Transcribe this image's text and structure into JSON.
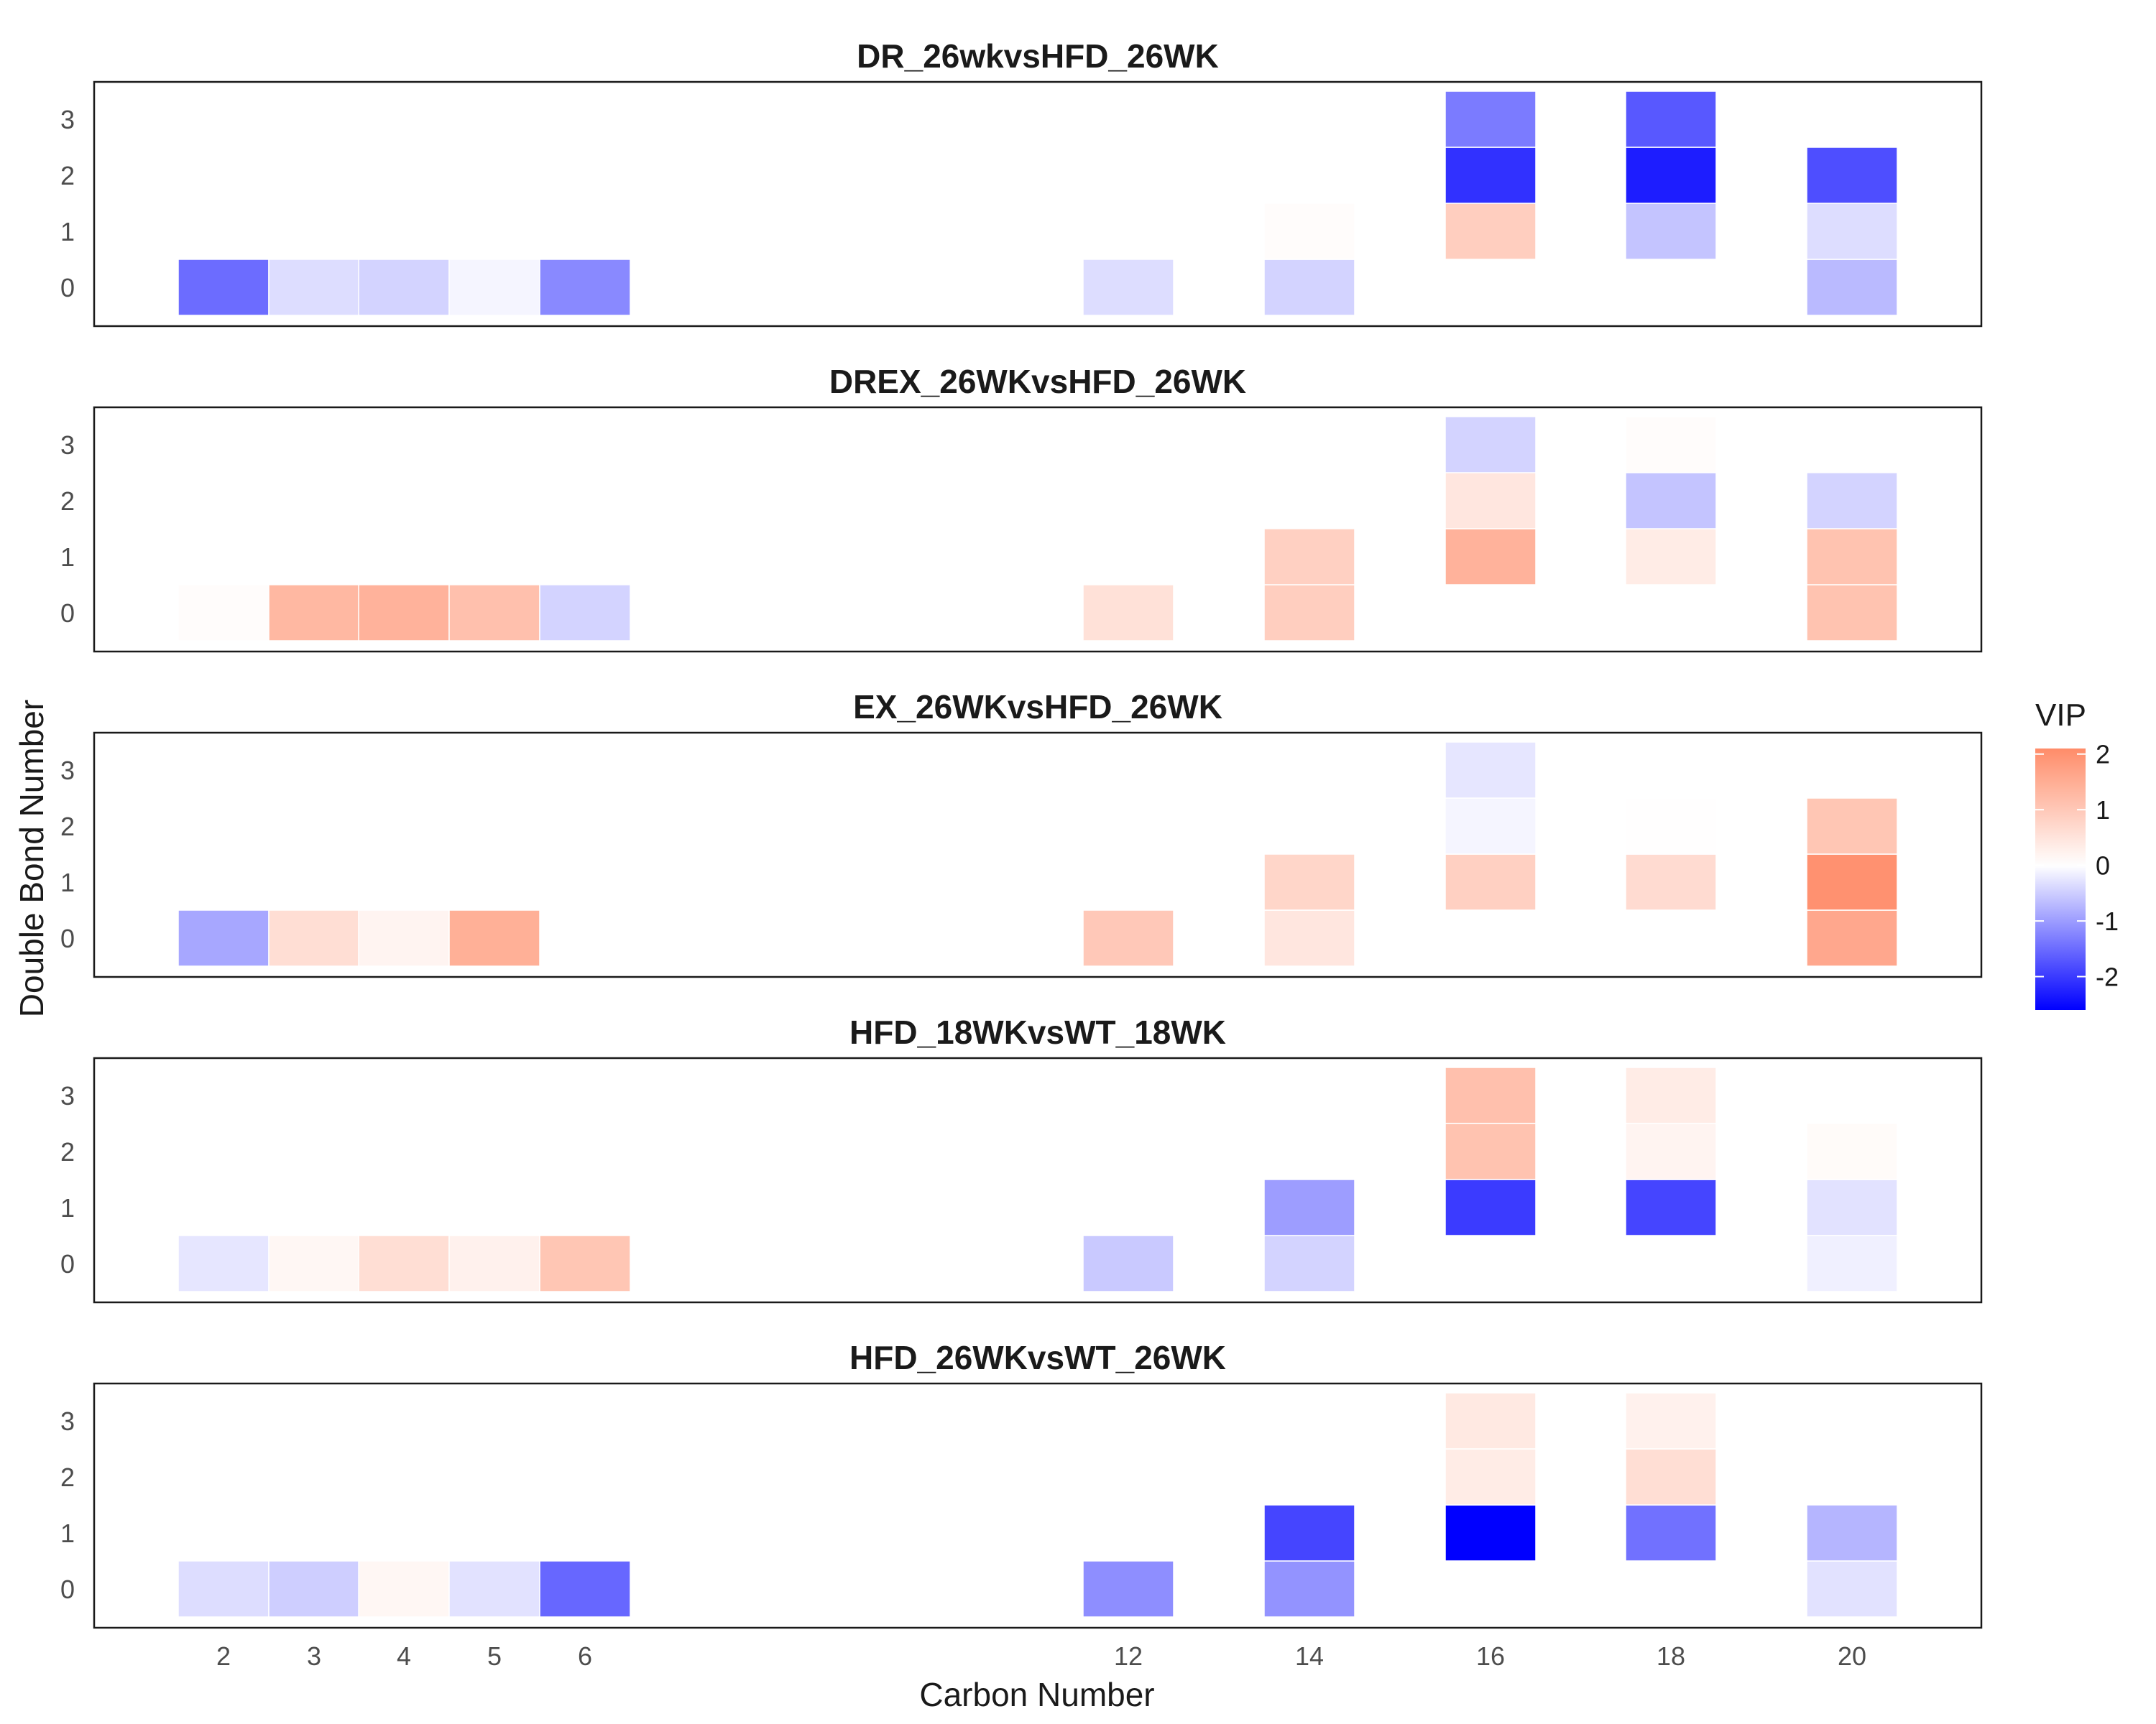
{
  "chart_data": {
    "type": "heatmap",
    "xlabel": "Carbon Number",
    "ylabel": "Double Bond Number",
    "x_ticks": [
      2,
      3,
      4,
      5,
      6,
      12,
      14,
      16,
      18,
      20
    ],
    "y_ticks": [
      0,
      1,
      2,
      3
    ],
    "legend": {
      "title": "VIP",
      "ticks": [
        2,
        1,
        0,
        -1,
        -2
      ],
      "range": [
        -2.6,
        2.1
      ],
      "colors": {
        "low": "#0000ff",
        "mid": "#ffffff",
        "high": "#ff8c69"
      },
      "placement": "right"
    },
    "panels": [
      {
        "title": "DR_26wkvsHFD_26WK",
        "cells": [
          {
            "carbon": 2,
            "db": 0,
            "vip": -1.5
          },
          {
            "carbon": 3,
            "db": 0,
            "vip": -0.35
          },
          {
            "carbon": 4,
            "db": 0,
            "vip": -0.45
          },
          {
            "carbon": 5,
            "db": 0,
            "vip": -0.1
          },
          {
            "carbon": 6,
            "db": 0,
            "vip": -1.2
          },
          {
            "carbon": 12,
            "db": 0,
            "vip": -0.35
          },
          {
            "carbon": 14,
            "db": 0,
            "vip": -0.45
          },
          {
            "carbon": 14,
            "db": 1,
            "vip": 0.05
          },
          {
            "carbon": 16,
            "db": 1,
            "vip": 0.9
          },
          {
            "carbon": 16,
            "db": 2,
            "vip": -2.1
          },
          {
            "carbon": 16,
            "db": 3,
            "vip": -1.35
          },
          {
            "carbon": 18,
            "db": 1,
            "vip": -0.6
          },
          {
            "carbon": 18,
            "db": 2,
            "vip": -2.3
          },
          {
            "carbon": 18,
            "db": 3,
            "vip": -1.7
          },
          {
            "carbon": 20,
            "db": 0,
            "vip": -0.7
          },
          {
            "carbon": 20,
            "db": 1,
            "vip": -0.35
          },
          {
            "carbon": 20,
            "db": 2,
            "vip": -1.8
          }
        ]
      },
      {
        "title": "DREX_26WKvsHFD_26WK",
        "cells": [
          {
            "carbon": 2,
            "db": 0,
            "vip": 0.05
          },
          {
            "carbon": 3,
            "db": 0,
            "vip": 1.3
          },
          {
            "carbon": 4,
            "db": 0,
            "vip": 1.4
          },
          {
            "carbon": 5,
            "db": 0,
            "vip": 1.15
          },
          {
            "carbon": 6,
            "db": 0,
            "vip": -0.45
          },
          {
            "carbon": 12,
            "db": 0,
            "vip": 0.55
          },
          {
            "carbon": 14,
            "db": 0,
            "vip": 0.9
          },
          {
            "carbon": 14,
            "db": 1,
            "vip": 0.85
          },
          {
            "carbon": 16,
            "db": 1,
            "vip": 1.4
          },
          {
            "carbon": 16,
            "db": 2,
            "vip": 0.45
          },
          {
            "carbon": 16,
            "db": 3,
            "vip": -0.45
          },
          {
            "carbon": 18,
            "db": 1,
            "vip": 0.35
          },
          {
            "carbon": 18,
            "db": 2,
            "vip": -0.6
          },
          {
            "carbon": 18,
            "db": 3,
            "vip": 0.05
          },
          {
            "carbon": 20,
            "db": 0,
            "vip": 1.1
          },
          {
            "carbon": 20,
            "db": 1,
            "vip": 1.1
          },
          {
            "carbon": 20,
            "db": 2,
            "vip": -0.45
          }
        ]
      },
      {
        "title": "EX_26WKvsHFD_26WK",
        "cells": [
          {
            "carbon": 2,
            "db": 0,
            "vip": -0.9
          },
          {
            "carbon": 3,
            "db": 0,
            "vip": 0.6
          },
          {
            "carbon": 4,
            "db": 0,
            "vip": 0.2
          },
          {
            "carbon": 5,
            "db": 0,
            "vip": 1.45
          },
          {
            "carbon": 12,
            "db": 0,
            "vip": 1.0
          },
          {
            "carbon": 14,
            "db": 0,
            "vip": 0.45
          },
          {
            "carbon": 14,
            "db": 1,
            "vip": 0.75
          },
          {
            "carbon": 16,
            "db": 1,
            "vip": 0.85
          },
          {
            "carbon": 16,
            "db": 2,
            "vip": -0.1
          },
          {
            "carbon": 16,
            "db": 3,
            "vip": -0.25
          },
          {
            "carbon": 18,
            "db": 1,
            "vip": 0.65
          },
          {
            "carbon": 18,
            "db": 2,
            "vip": 0.02
          },
          {
            "carbon": 20,
            "db": 0,
            "vip": 1.6
          },
          {
            "carbon": 20,
            "db": 1,
            "vip": 2.0
          },
          {
            "carbon": 20,
            "db": 2,
            "vip": 1.05
          }
        ]
      },
      {
        "title": "HFD_18WKvsWT_18WK",
        "cells": [
          {
            "carbon": 2,
            "db": 0,
            "vip": -0.25
          },
          {
            "carbon": 3,
            "db": 0,
            "vip": 0.15
          },
          {
            "carbon": 4,
            "db": 0,
            "vip": 0.6
          },
          {
            "carbon": 5,
            "db": 0,
            "vip": 0.25
          },
          {
            "carbon": 6,
            "db": 0,
            "vip": 1.05
          },
          {
            "carbon": 12,
            "db": 0,
            "vip": -0.55
          },
          {
            "carbon": 14,
            "db": 0,
            "vip": -0.45
          },
          {
            "carbon": 14,
            "db": 1,
            "vip": -1.0
          },
          {
            "carbon": 16,
            "db": 1,
            "vip": -2.0
          },
          {
            "carbon": 16,
            "db": 2,
            "vip": 1.1
          },
          {
            "carbon": 16,
            "db": 3,
            "vip": 1.15
          },
          {
            "carbon": 18,
            "db": 1,
            "vip": -1.9
          },
          {
            "carbon": 18,
            "db": 2,
            "vip": 0.2
          },
          {
            "carbon": 18,
            "db": 3,
            "vip": 0.35
          },
          {
            "carbon": 20,
            "db": 0,
            "vip": -0.15
          },
          {
            "carbon": 20,
            "db": 1,
            "vip": -0.3
          },
          {
            "carbon": 20,
            "db": 2,
            "vip": 0.08
          }
        ]
      },
      {
        "title": "HFD_26WKvsWT_26WK",
        "cells": [
          {
            "carbon": 2,
            "db": 0,
            "vip": -0.35
          },
          {
            "carbon": 3,
            "db": 0,
            "vip": -0.5
          },
          {
            "carbon": 4,
            "db": 0,
            "vip": 0.15
          },
          {
            "carbon": 5,
            "db": 0,
            "vip": -0.3
          },
          {
            "carbon": 6,
            "db": 0,
            "vip": -1.55
          },
          {
            "carbon": 12,
            "db": 0,
            "vip": -1.15
          },
          {
            "carbon": 14,
            "db": 0,
            "vip": -1.1
          },
          {
            "carbon": 14,
            "db": 1,
            "vip": -1.9
          },
          {
            "carbon": 16,
            "db": 1,
            "vip": -2.6
          },
          {
            "carbon": 16,
            "db": 2,
            "vip": 0.35
          },
          {
            "carbon": 16,
            "db": 3,
            "vip": 0.4
          },
          {
            "carbon": 18,
            "db": 1,
            "vip": -1.45
          },
          {
            "carbon": 18,
            "db": 2,
            "vip": 0.6
          },
          {
            "carbon": 18,
            "db": 3,
            "vip": 0.25
          },
          {
            "carbon": 20,
            "db": 0,
            "vip": -0.3
          },
          {
            "carbon": 20,
            "db": 1,
            "vip": -0.75
          }
        ]
      }
    ]
  }
}
